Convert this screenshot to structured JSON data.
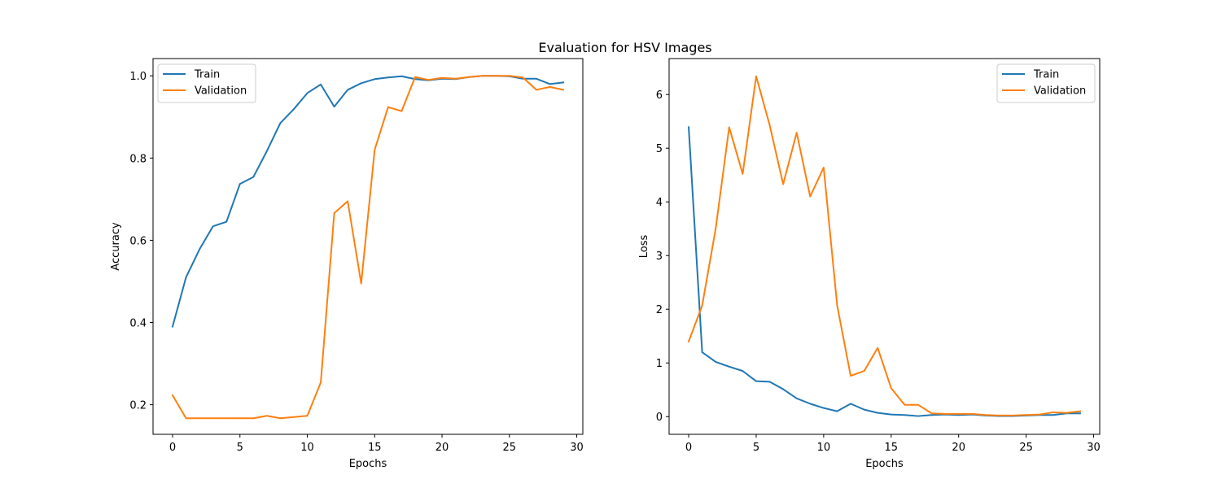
{
  "figure_title": "Evaluation for HSV Images",
  "colors": {
    "train": "#1f77b4",
    "validation": "#ff7f0e"
  },
  "chart_data": [
    {
      "type": "line",
      "title": "",
      "xlabel": "Epochs",
      "ylabel": "Accuracy",
      "xlim": [
        -1.45,
        30.45
      ],
      "ylim": [
        0.128,
        1.042
      ],
      "xticks": [
        0,
        5,
        10,
        15,
        20,
        25,
        30
      ],
      "yticks": [
        0.2,
        0.4,
        0.6,
        0.8,
        1.0
      ],
      "ytick_labels": [
        "0.2",
        "0.4",
        "0.6",
        "0.8",
        "1.0"
      ],
      "legend": "upper left",
      "x": [
        0,
        1,
        2,
        3,
        4,
        5,
        6,
        7,
        8,
        9,
        10,
        11,
        12,
        13,
        14,
        15,
        16,
        17,
        18,
        19,
        20,
        21,
        22,
        23,
        24,
        25,
        26,
        27,
        28,
        29
      ],
      "series": [
        {
          "name": "Train",
          "color": "#1f77b4",
          "values": [
            0.39,
            0.51,
            0.578,
            0.634,
            0.645,
            0.737,
            0.754,
            0.817,
            0.885,
            0.919,
            0.958,
            0.979,
            0.925,
            0.966,
            0.982,
            0.992,
            0.996,
            0.999,
            0.992,
            0.989,
            0.993,
            0.992,
            0.997,
            1.0,
            1.0,
            0.999,
            0.993,
            0.993,
            0.98,
            0.984
          ]
        },
        {
          "name": "Validation",
          "color": "#ff7f0e",
          "values": [
            0.223,
            0.167,
            0.167,
            0.167,
            0.167,
            0.167,
            0.167,
            0.173,
            0.167,
            0.17,
            0.173,
            0.254,
            0.666,
            0.695,
            0.495,
            0.82,
            0.924,
            0.914,
            0.997,
            0.99,
            0.995,
            0.993,
            0.997,
            1.0,
            1.0,
            1.0,
            0.996,
            0.966,
            0.973,
            0.966
          ]
        }
      ]
    },
    {
      "type": "line",
      "title": "",
      "xlabel": "Epochs",
      "ylabel": "Loss",
      "xlim": [
        -1.45,
        30.45
      ],
      "ylim": [
        -0.33,
        6.67
      ],
      "xticks": [
        0,
        5,
        10,
        15,
        20,
        25,
        30
      ],
      "yticks": [
        0,
        1,
        2,
        3,
        4,
        5,
        6
      ],
      "ytick_labels": [
        "0",
        "1",
        "2",
        "3",
        "4",
        "5",
        "6"
      ],
      "legend": "upper right",
      "x": [
        0,
        1,
        2,
        3,
        4,
        5,
        6,
        7,
        8,
        9,
        10,
        11,
        12,
        13,
        14,
        15,
        16,
        17,
        18,
        19,
        20,
        21,
        22,
        23,
        24,
        25,
        26,
        27,
        28,
        29
      ],
      "series": [
        {
          "name": "Train",
          "color": "#1f77b4",
          "values": [
            5.39,
            1.2,
            1.02,
            0.93,
            0.85,
            0.66,
            0.65,
            0.51,
            0.34,
            0.24,
            0.16,
            0.1,
            0.24,
            0.13,
            0.07,
            0.04,
            0.03,
            0.01,
            0.03,
            0.04,
            0.03,
            0.04,
            0.02,
            0.01,
            0.01,
            0.02,
            0.03,
            0.03,
            0.06,
            0.06
          ]
        },
        {
          "name": "Validation",
          "color": "#ff7f0e",
          "values": [
            1.4,
            2.07,
            3.5,
            5.39,
            4.52,
            6.34,
            5.43,
            4.33,
            5.29,
            4.1,
            4.64,
            2.07,
            0.76,
            0.85,
            1.28,
            0.53,
            0.22,
            0.22,
            0.06,
            0.05,
            0.05,
            0.05,
            0.03,
            0.02,
            0.02,
            0.03,
            0.04,
            0.08,
            0.07,
            0.1
          ]
        }
      ]
    }
  ]
}
